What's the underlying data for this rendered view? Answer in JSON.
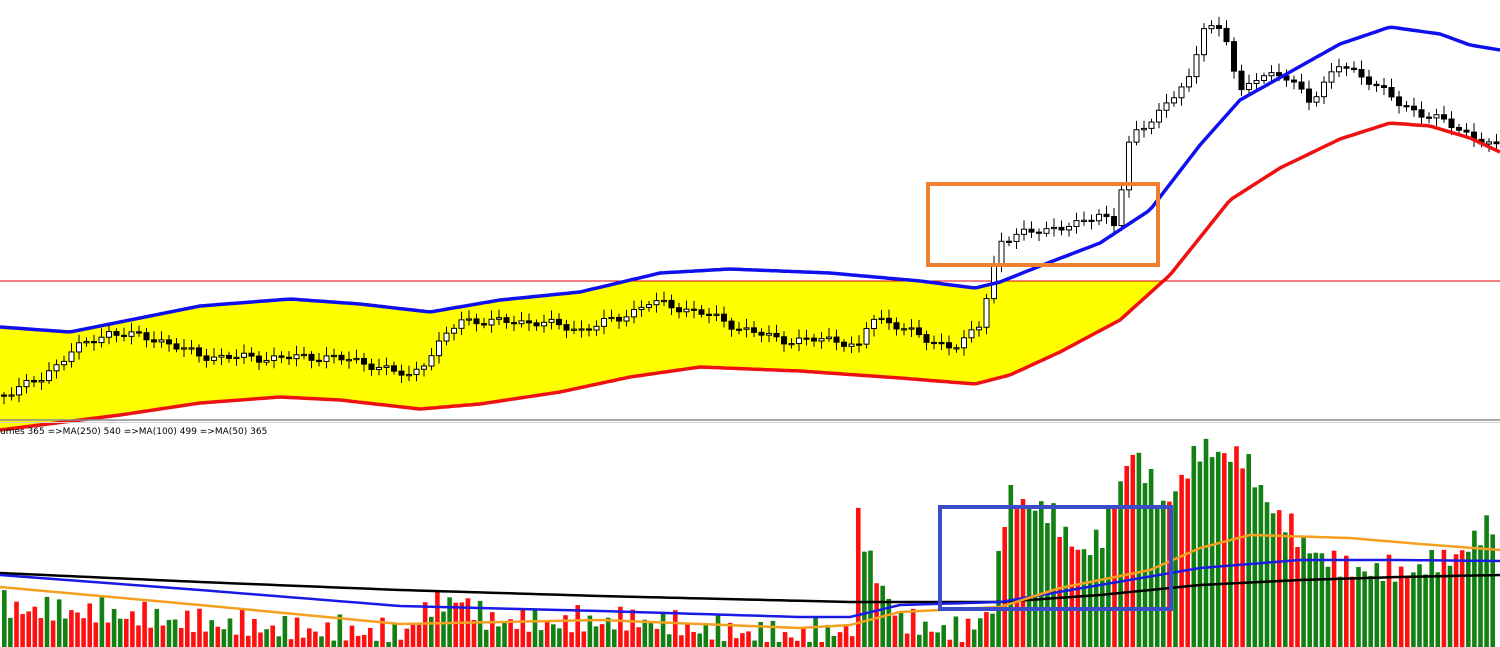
{
  "colors": {
    "background": "#ffffff",
    "channel_fill": "#ffff00",
    "upper_band": "#1010ee",
    "lower_band": "#ee1111",
    "level_line": "#e00000",
    "candle_up_fill": "#ffffff",
    "candle_down_fill": "#000000",
    "candle_outline": "#000000",
    "vol_up": "#138013",
    "vol_down": "#ff1010",
    "ma250": "#000000",
    "ma100": "#1a1ae6",
    "ma50": "#f5a020",
    "price_highlight_box": "#f08030",
    "volume_highlight_box": "#3c4cc8",
    "separator": "#8a8a8a"
  },
  "volume_panel": {
    "label": "umes 365  =>MA(250) 540  =>MA(100) 499  =>MA(50) 365"
  },
  "chart_data": [
    {
      "type": "candlestick",
      "panel": "price",
      "grid": false,
      "legend": "none",
      "description_of_channel": "yellow band between upper (blue) and lower (red) envelopes",
      "x_index_range": [
        0,
        199
      ],
      "y_price_scale": "unlabeled",
      "level_line": {
        "y_screen_note": "horizontal red level"
      },
      "highlight": {
        "start_index": 124,
        "end_index": 154,
        "color": "orange"
      }
    },
    {
      "type": "bar",
      "panel": "volume",
      "grid": false,
      "legend": "top-left",
      "series": [
        {
          "name": "MA(250)",
          "value": 540
        },
        {
          "name": "MA(100)",
          "value": 499
        },
        {
          "name": "MA(50)",
          "value": 365
        }
      ],
      "current_volume": 365,
      "highlight": {
        "start_index": 125,
        "end_index": 156,
        "color": "blue"
      }
    }
  ]
}
